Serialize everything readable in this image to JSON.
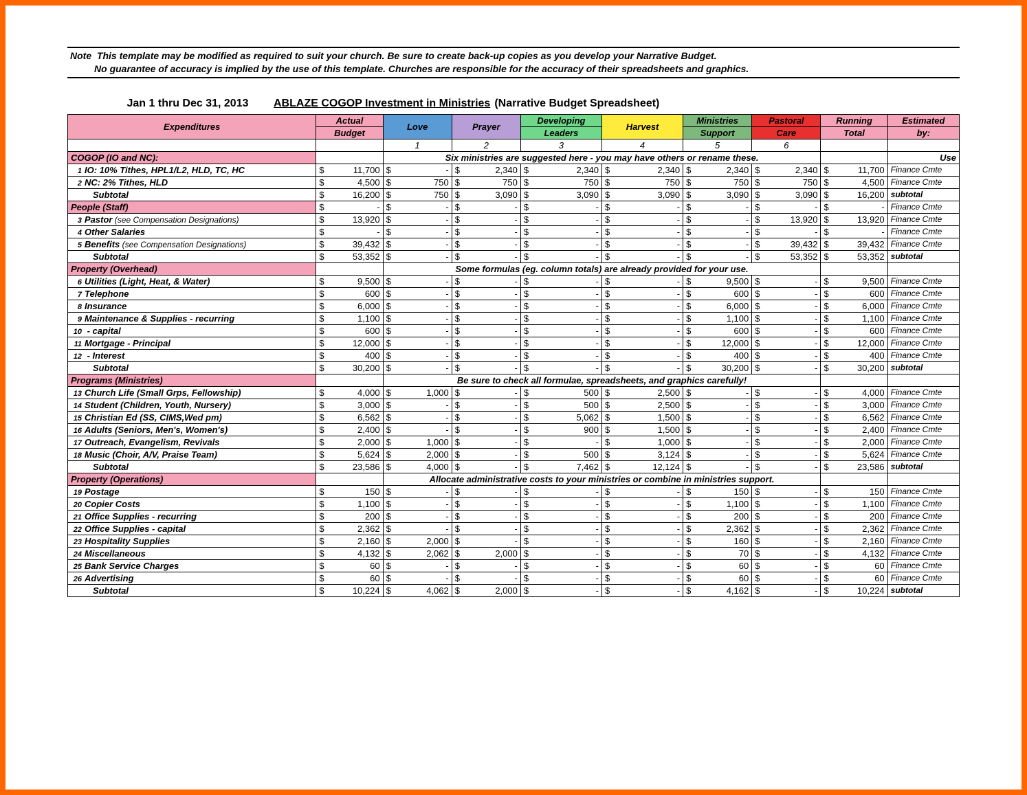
{
  "colors": {
    "frame": "#ff6600",
    "section_bg": "#f4a3b8",
    "border": "#000000",
    "headers": {
      "actual": "#f4a3b8",
      "love": "#5b9bd5",
      "prayer": "#b89ed6",
      "developing": "#70d88a",
      "harvest": "#ffeb3b",
      "ministries": "#7db87d",
      "pastoral": "#e83030",
      "running": "#f4a3b8",
      "estimated": "#f4a3b8"
    }
  },
  "note": {
    "label": "Note",
    "line1": "This template may be modified as required to suit your church.  Be sure to create back-up copies as you develop your Narrative Budget.",
    "line2": "No guarantee of accuracy is implied by the use of this template.  Churches are responsible for the accuracy of their spreadsheets and graphics."
  },
  "title": {
    "date": "Jan 1 thru Dec 31, 2013",
    "main": "ABLAZE COGOP  Investment in Ministries",
    "sub": "(Narrative Budget Spreadsheet)"
  },
  "headers": {
    "expenditures": "Expenditures",
    "actual1": "Actual",
    "actual2": "Budget",
    "love": "Love",
    "prayer": "Prayer",
    "dev1": "Developing",
    "dev2": "Leaders",
    "harvest": "Harvest",
    "min1": "Ministries",
    "min2": "Support",
    "past1": "Pastoral",
    "past2": "Care",
    "run1": "Running",
    "run2": "Total",
    "est1": "Estimated",
    "est2": "by:",
    "nums": {
      "c1": "1",
      "c2": "2",
      "c3": "3",
      "c4": "4",
      "c5": "5",
      "c6": "6"
    },
    "use": "Use",
    "six_info": "Six ministries are suggested here - you may have others or rename these.",
    "formulas_info": "Some formulas (eg. column totals) are already provided for your use.",
    "check_info": "Be sure to check all formulae, spreadsheets, and graphics carefully!",
    "allocate_info": "Allocate administrative costs to your ministries or combine in ministries support."
  },
  "subtotal_label": "Subtotal",
  "subtotal_est": "subtotal",
  "finance": "Finance Cmte",
  "sections": [
    {
      "title": "COGOP (IO and NC):",
      "info_key": "six_info",
      "est_hdr": "Use",
      "rows": [
        {
          "n": "1",
          "desc": "IO: 10% Tithes, HPL1/L2, HLD, TC, HC",
          "vals": [
            "11,700",
            "-",
            "2,340",
            "2,340",
            "2,340",
            "2,340",
            "2,340",
            "11,700"
          ]
        },
        {
          "n": "2",
          "desc": "NC: 2% Tithes, HLD",
          "vals": [
            "4,500",
            "750",
            "750",
            "750",
            "750",
            "750",
            "750",
            "4,500"
          ]
        }
      ],
      "subtotal": [
        "16,200",
        "750",
        "3,090",
        "3,090",
        "3,090",
        "3,090",
        "3,090",
        "16,200"
      ]
    },
    {
      "title": "People (Staff)",
      "info_key": null,
      "first_empty": true,
      "rows": [
        {
          "n": "3",
          "desc": "Pastor",
          "sub": " (see Compensation Designations)",
          "vals": [
            "13,920",
            "-",
            "-",
            "-",
            "-",
            "-",
            "13,920",
            "13,920"
          ]
        },
        {
          "n": "4",
          "desc": "Other Salaries",
          "vals": [
            "-",
            "-",
            "-",
            "-",
            "-",
            "-",
            "-",
            "-"
          ]
        },
        {
          "n": "5",
          "desc": "Benefits",
          "sub": " (see Compensation Designations)",
          "vals": [
            "39,432",
            "-",
            "-",
            "-",
            "-",
            "-",
            "39,432",
            "39,432"
          ]
        }
      ],
      "subtotal": [
        "53,352",
        "-",
        "-",
        "-",
        "-",
        "-",
        "53,352",
        "53,352"
      ]
    },
    {
      "title": "Property (Overhead)",
      "info_key": "formulas_info",
      "rows": [
        {
          "n": "6",
          "desc": "Utilities (Light, Heat, & Water)",
          "vals": [
            "9,500",
            "-",
            "-",
            "-",
            "-",
            "9,500",
            "-",
            "9,500"
          ]
        },
        {
          "n": "7",
          "desc": "Telephone",
          "vals": [
            "600",
            "-",
            "-",
            "-",
            "-",
            "600",
            "-",
            "600"
          ]
        },
        {
          "n": "8",
          "desc": "Insurance",
          "vals": [
            "6,000",
            "-",
            "-",
            "-",
            "-",
            "6,000",
            "-",
            "6,000"
          ]
        },
        {
          "n": "9",
          "desc": "Maintenance & Supplies - recurring",
          "vals": [
            "1,100",
            "-",
            "-",
            "-",
            "-",
            "1,100",
            "-",
            "1,100"
          ]
        },
        {
          "n": "10",
          "desc": "                               - capital",
          "vals": [
            "600",
            "-",
            "-",
            "-",
            "-",
            "600",
            "-",
            "600"
          ]
        },
        {
          "n": "11",
          "desc": "Mortgage  - Principal",
          "vals": [
            "12,000",
            "-",
            "-",
            "-",
            "-",
            "12,000",
            "-",
            "12,000"
          ]
        },
        {
          "n": "12",
          "desc": "                  - Interest",
          "vals": [
            "400",
            "-",
            "-",
            "-",
            "-",
            "400",
            "-",
            "400"
          ]
        }
      ],
      "subtotal": [
        "30,200",
        "-",
        "-",
        "-",
        "-",
        "30,200",
        "-",
        "30,200"
      ]
    },
    {
      "title": "Programs (Ministries)",
      "info_key": "check_info",
      "rows": [
        {
          "n": "13",
          "desc": "Church Life (Small Grps, Fellowship)",
          "vals": [
            "4,000",
            "1,000",
            "-",
            "500",
            "2,500",
            "-",
            "-",
            "4,000"
          ]
        },
        {
          "n": "14",
          "desc": "Student (Children, Youth, Nursery)",
          "vals": [
            "3,000",
            "-",
            "-",
            "500",
            "2,500",
            "-",
            "-",
            "3,000"
          ]
        },
        {
          "n": "15",
          "desc": "Christian Ed (SS, CIMS,Wed pm)",
          "vals": [
            "6,562",
            "-",
            "-",
            "5,062",
            "1,500",
            "-",
            "-",
            "6,562"
          ]
        },
        {
          "n": "16",
          "desc": "Adults (Seniors, Men's, Women's)",
          "vals": [
            "2,400",
            "-",
            "-",
            "900",
            "1,500",
            "-",
            "-",
            "2,400"
          ]
        },
        {
          "n": "17",
          "desc": "Outreach, Evangelism, Revivals",
          "vals": [
            "2,000",
            "1,000",
            "-",
            "-",
            "1,000",
            "-",
            "-",
            "2,000"
          ]
        },
        {
          "n": "18",
          "desc": "Music (Choir, A/V, Praise Team)",
          "vals": [
            "5,624",
            "2,000",
            "-",
            "500",
            "3,124",
            "-",
            "-",
            "5,624"
          ]
        }
      ],
      "subtotal": [
        "23,586",
        "4,000",
        "-",
        "7,462",
        "12,124",
        "-",
        "-",
        "23,586"
      ]
    },
    {
      "title": "Property (Operations)",
      "info_key": "allocate_info",
      "rows": [
        {
          "n": "19",
          "desc": "Postage",
          "vals": [
            "150",
            "-",
            "-",
            "-",
            "-",
            "150",
            "-",
            "150"
          ]
        },
        {
          "n": "20",
          "desc": "Copier Costs",
          "vals": [
            "1,100",
            "-",
            "-",
            "-",
            "-",
            "1,100",
            "-",
            "1,100"
          ]
        },
        {
          "n": "21",
          "desc": "Office Supplies - recurring",
          "vals": [
            "200",
            "-",
            "-",
            "-",
            "-",
            "200",
            "-",
            "200"
          ]
        },
        {
          "n": "22",
          "desc": "Office Supplies - capital",
          "vals": [
            "2,362",
            "-",
            "-",
            "-",
            "-",
            "2,362",
            "-",
            "2,362"
          ]
        },
        {
          "n": "23",
          "desc": "Hospitality Supplies",
          "vals": [
            "2,160",
            "2,000",
            "-",
            "-",
            "-",
            "160",
            "-",
            "2,160"
          ]
        },
        {
          "n": "24",
          "desc": "Miscellaneous",
          "vals": [
            "4,132",
            "2,062",
            "2,000",
            "-",
            "-",
            "70",
            "-",
            "4,132"
          ]
        },
        {
          "n": "25",
          "desc": "Bank Service Charges",
          "vals": [
            "60",
            "-",
            "-",
            "-",
            "-",
            "60",
            "-",
            "60"
          ]
        },
        {
          "n": "26",
          "desc": "Advertising",
          "vals": [
            "60",
            "-",
            "-",
            "-",
            "-",
            "60",
            "-",
            "60"
          ]
        }
      ],
      "subtotal": [
        "10,224",
        "4,062",
        "2,000",
        "-",
        "-",
        "4,162",
        "-",
        "10,224"
      ]
    }
  ]
}
